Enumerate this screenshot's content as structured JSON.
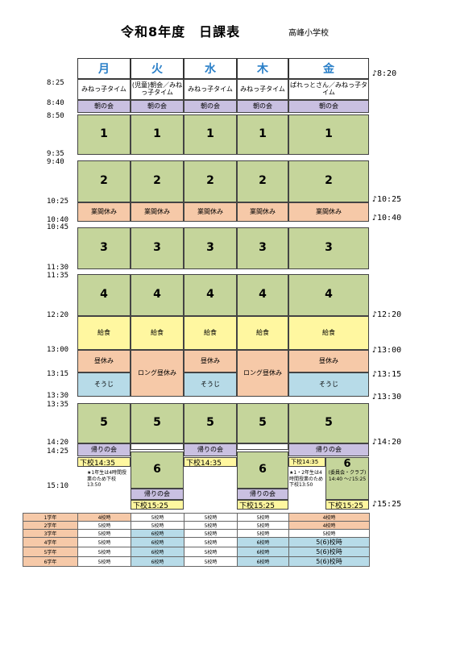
{
  "title": "令和8年度　日課表",
  "school": "高峰小学校",
  "days": [
    "月",
    "火",
    "水",
    "木",
    "金"
  ],
  "left_times": [
    "8:25",
    "8:40",
    "8:50",
    "9:35",
    "9:40",
    "10:25",
    "10:40",
    "10:45",
    "11:30",
    "11:35",
    "12:20",
    "13:00",
    "13:15",
    "13:30",
    "13:35",
    "14:20",
    "14:25",
    "15:10"
  ],
  "right_times": [
    "♪8:20",
    "♪10:25",
    "♪10:40",
    "♪12:20",
    "♪13:00",
    "♪13:15",
    "♪13:30",
    "♪14:20",
    "♪15:25"
  ],
  "rows": {
    "morning": [
      "みねっ子タイム",
      "(児童)朝会／みねっ子タイム",
      "みねっ子タイム",
      "みねっ子タイム",
      "ぱれっとさん／みねっ子タイム"
    ],
    "asa_no_kai": "朝の会",
    "p1": "1",
    "p2": "2",
    "break": "業間休み",
    "p3": "3",
    "p4": "4",
    "lunch": "給食",
    "hiru_yasumi": "昼休み",
    "long_hiru": "ロング昼休み",
    "souji": "そうじ",
    "p5": "5",
    "kaeri_no_kai": "帰りの会",
    "p6": "6",
    "gekou_1435": "下校14:35",
    "gekou_1525": "下校15:25",
    "note_mon": "★1年生は4時間授業のため下校13:50",
    "note_fri": "★1・2年生は4時間授業のため下校13:50",
    "fri_club": "(委員会・クラブ)",
    "fri_club_time": "14:40 ～♪15:25"
  },
  "summary": {
    "grades": [
      "1学年",
      "2学年",
      "3学年",
      "4学年",
      "5学年",
      "6学年"
    ],
    "cells": [
      [
        "4校時",
        "5校時",
        "5校時",
        "5校時",
        "4校時"
      ],
      [
        "5校時",
        "5校時",
        "5校時",
        "5校時",
        "4校時"
      ],
      [
        "5校時",
        "6校時",
        "5校時",
        "5校時",
        "5校時"
      ],
      [
        "5校時",
        "6校時",
        "5校時",
        "6校時",
        "5(6)校時"
      ],
      [
        "5校時",
        "6校時",
        "5校時",
        "6校時",
        "5(6)校時"
      ],
      [
        "5校時",
        "6校時",
        "5校時",
        "6校時",
        "5(6)校時"
      ]
    ]
  },
  "colors": {
    "period": "#c5d59b",
    "meeting": "#c9c0e1",
    "break": "#f6c9a8",
    "lunch": "#fff7a0",
    "souji": "#b7dbe8",
    "day_text": "#2a7fc8"
  }
}
